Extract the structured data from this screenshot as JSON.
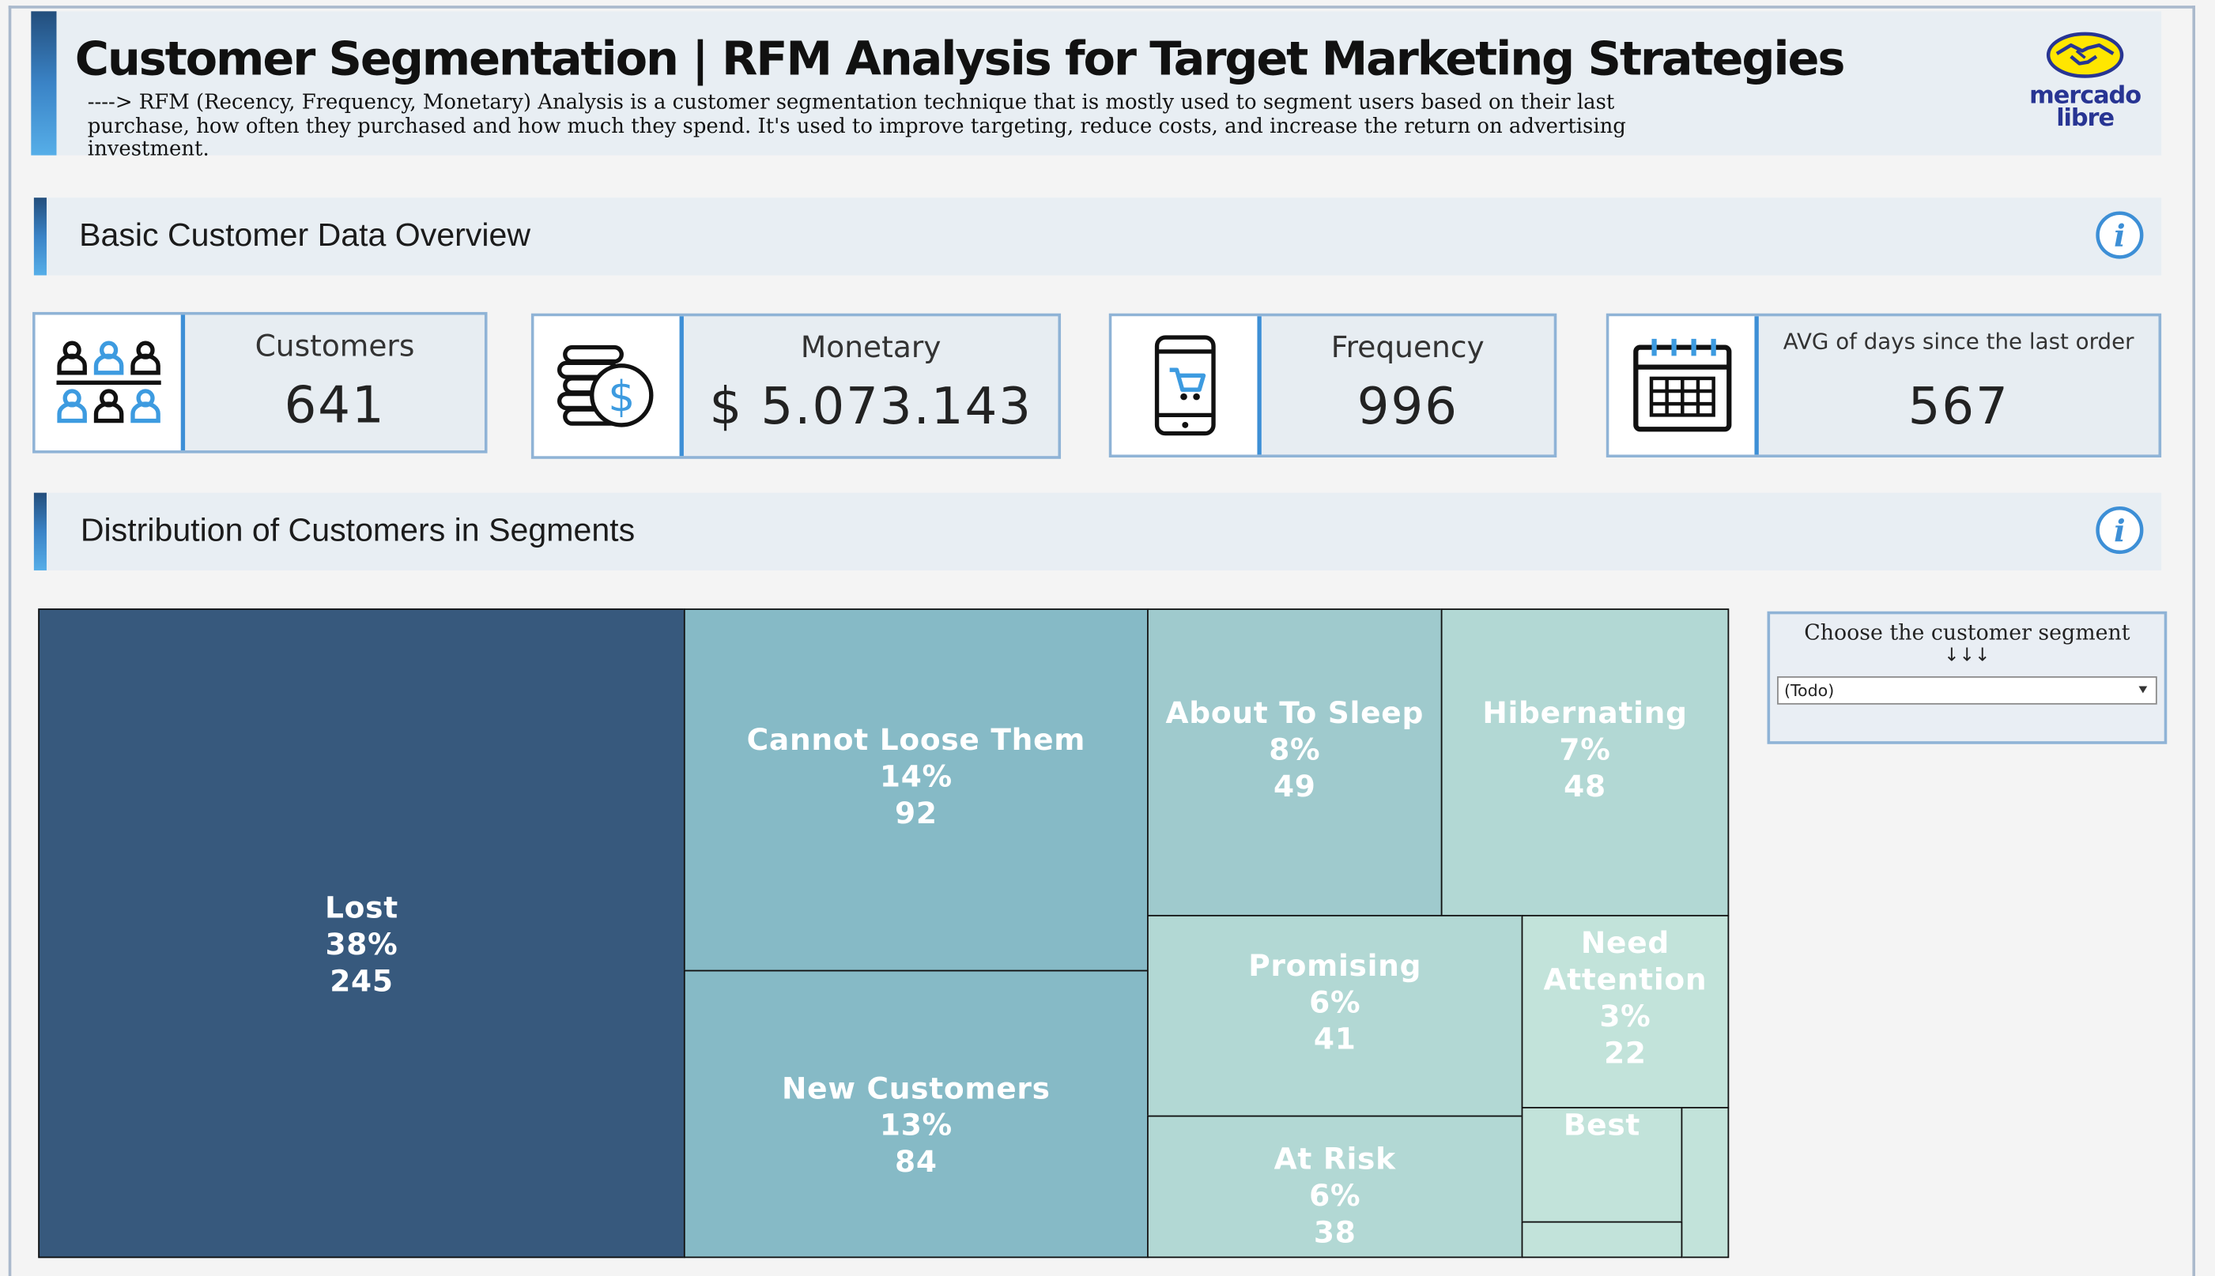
{
  "header": {
    "title": "Customer Segmentation | RFM Analysis for Target Marketing Strategies",
    "description": "----> RFM (Recency, Frequency, Monetary) Analysis is a customer segmentation technique that is mostly used to segment users based on their last purchase, how often they purchased and how much they spend. It's used to improve targeting, reduce costs, and increase the return on advertising investment.",
    "logo_line1": "mercado",
    "logo_line2": "libre"
  },
  "overview": {
    "title": "Basic Customer Data Overview"
  },
  "kpis": [
    {
      "label": "Customers",
      "value": "641",
      "icon": "people-icon"
    },
    {
      "label": "Monetary",
      "value": "$ 5.073.143",
      "icon": "coins-dollar-icon"
    },
    {
      "label": "Frequency",
      "value": "996",
      "icon": "phone-cart-icon"
    },
    {
      "label": "AVG of days since the last order",
      "value": "567",
      "icon": "calendar-icon"
    }
  ],
  "distribution": {
    "title": "Distribution of Customers in Segments"
  },
  "filter": {
    "title": "Choose the customer segment",
    "arrows": "↓↓↓",
    "selected": "(Todo)"
  },
  "colors": {
    "accent": "#3d8fd6",
    "lost": "#37597d",
    "mid": "#86bac6",
    "light": "#9fcacd",
    "lighter": "#b2d8d4",
    "lightest": "#c2e3da"
  },
  "chart_data": {
    "type": "treemap",
    "segments": [
      {
        "name": "Lost",
        "percent": "38%",
        "count": 245
      },
      {
        "name": "Cannot Loose Them",
        "percent": "14%",
        "count": 92
      },
      {
        "name": "New Customers",
        "percent": "13%",
        "count": 84
      },
      {
        "name": "About To Sleep",
        "percent": "8%",
        "count": 49
      },
      {
        "name": "Hibernating",
        "percent": "7%",
        "count": 48
      },
      {
        "name": "Promising",
        "percent": "6%",
        "count": 41
      },
      {
        "name": "At Risk",
        "percent": "6%",
        "count": 38
      },
      {
        "name": "Need Attention",
        "percent": "3%",
        "count": 22
      },
      {
        "name": "Best",
        "percent": "",
        "count": null
      }
    ]
  }
}
